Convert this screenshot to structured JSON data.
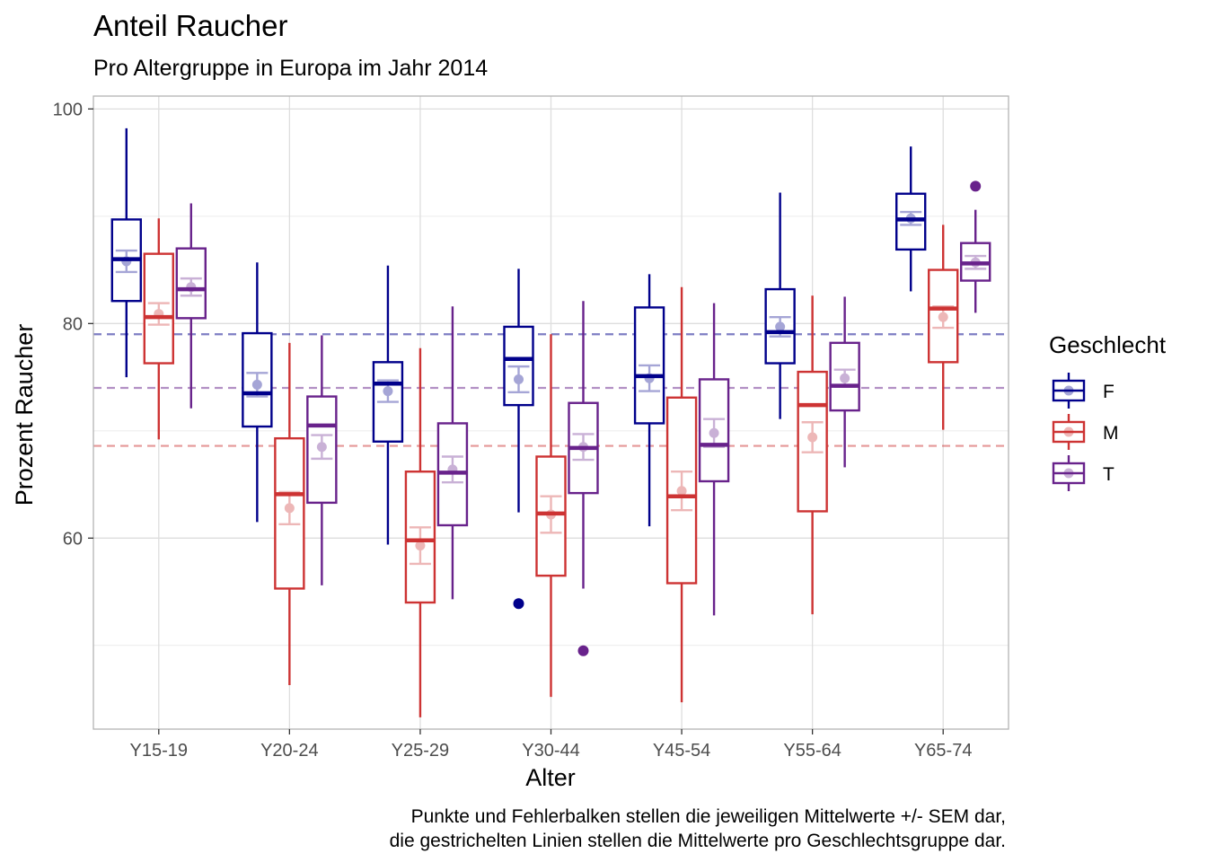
{
  "chart_data": {
    "type": "boxplot",
    "title": "Anteil Raucher",
    "subtitle": "Pro Altergruppe in Europa im Jahr 2014",
    "xlabel": "Alter",
    "ylabel": "Prozent Raucher",
    "ylim": [
      42.2,
      101.2
    ],
    "yticks": [
      60,
      80,
      100
    ],
    "grid": true,
    "legend": {
      "title": "Geschlecht",
      "placement": "right"
    },
    "categories": [
      "Y15-19",
      "Y20-24",
      "Y25-29",
      "Y30-44",
      "Y45-54",
      "Y55-64",
      "Y65-74"
    ],
    "series": [
      {
        "name": "F",
        "color": "#00008B",
        "overall_mean": 79.0,
        "boxes": [
          {
            "whisker_low": 75.0,
            "q1": 82.1,
            "median": 86.0,
            "q3": 89.7,
            "whisker_high": 98.2,
            "mean": 85.8,
            "sem": 1.0,
            "outliers": []
          },
          {
            "whisker_low": 61.5,
            "q1": 70.4,
            "median": 73.5,
            "q3": 79.1,
            "whisker_high": 85.7,
            "mean": 74.3,
            "sem": 1.1,
            "outliers": []
          },
          {
            "whisker_low": 59.4,
            "q1": 69.0,
            "median": 74.4,
            "q3": 76.4,
            "whisker_high": 85.4,
            "mean": 73.7,
            "sem": 1.0,
            "outliers": []
          },
          {
            "whisker_low": 62.4,
            "q1": 72.4,
            "median": 76.7,
            "q3": 79.7,
            "whisker_high": 85.1,
            "mean": 74.8,
            "sem": 1.2,
            "outliers": [
              53.9
            ]
          },
          {
            "whisker_low": 61.1,
            "q1": 70.7,
            "median": 75.1,
            "q3": 81.5,
            "whisker_high": 84.6,
            "mean": 74.9,
            "sem": 1.2,
            "outliers": []
          },
          {
            "whisker_low": 71.1,
            "q1": 76.3,
            "median": 79.2,
            "q3": 83.2,
            "whisker_high": 92.2,
            "mean": 79.7,
            "sem": 0.9,
            "outliers": []
          },
          {
            "whisker_low": 83.0,
            "q1": 86.9,
            "median": 89.7,
            "q3": 92.1,
            "whisker_high": 96.5,
            "mean": 89.8,
            "sem": 0.6,
            "outliers": []
          }
        ]
      },
      {
        "name": "M",
        "color": "#CD3333",
        "overall_mean": 68.6,
        "boxes": [
          {
            "whisker_low": 69.2,
            "q1": 76.3,
            "median": 80.6,
            "q3": 86.5,
            "whisker_high": 89.8,
            "mean": 80.9,
            "sem": 1.0,
            "outliers": []
          },
          {
            "whisker_low": 46.3,
            "q1": 55.3,
            "median": 64.1,
            "q3": 69.3,
            "whisker_high": 78.2,
            "mean": 62.8,
            "sem": 1.5,
            "outliers": []
          },
          {
            "whisker_low": 43.3,
            "q1": 54.0,
            "median": 59.8,
            "q3": 66.2,
            "whisker_high": 77.7,
            "mean": 59.3,
            "sem": 1.7,
            "outliers": []
          },
          {
            "whisker_low": 45.2,
            "q1": 56.5,
            "median": 62.3,
            "q3": 67.6,
            "whisker_high": 79.0,
            "mean": 62.2,
            "sem": 1.7,
            "outliers": []
          },
          {
            "whisker_low": 44.7,
            "q1": 55.8,
            "median": 63.9,
            "q3": 73.1,
            "whisker_high": 83.4,
            "mean": 64.4,
            "sem": 1.8,
            "outliers": []
          },
          {
            "whisker_low": 52.9,
            "q1": 62.5,
            "median": 72.4,
            "q3": 75.5,
            "whisker_high": 82.6,
            "mean": 69.4,
            "sem": 1.4,
            "outliers": []
          },
          {
            "whisker_low": 70.1,
            "q1": 76.4,
            "median": 81.4,
            "q3": 85.0,
            "whisker_high": 89.2,
            "mean": 80.6,
            "sem": 1.0,
            "outliers": []
          }
        ]
      },
      {
        "name": "T",
        "color": "#68228B",
        "overall_mean": 74.0,
        "boxes": [
          {
            "whisker_low": 72.1,
            "q1": 80.5,
            "median": 83.2,
            "q3": 87.0,
            "whisker_high": 91.2,
            "mean": 83.4,
            "sem": 0.8,
            "outliers": []
          },
          {
            "whisker_low": 55.6,
            "q1": 63.3,
            "median": 70.5,
            "q3": 73.2,
            "whisker_high": 78.9,
            "mean": 68.5,
            "sem": 1.1,
            "outliers": []
          },
          {
            "whisker_low": 54.3,
            "q1": 61.2,
            "median": 66.1,
            "q3": 70.7,
            "whisker_high": 81.6,
            "mean": 66.4,
            "sem": 1.2,
            "outliers": []
          },
          {
            "whisker_low": 55.3,
            "q1": 64.2,
            "median": 68.4,
            "q3": 72.6,
            "whisker_high": 82.1,
            "mean": 68.5,
            "sem": 1.2,
            "outliers": [
              49.5
            ]
          },
          {
            "whisker_low": 52.8,
            "q1": 65.3,
            "median": 68.7,
            "q3": 74.8,
            "whisker_high": 81.9,
            "mean": 69.8,
            "sem": 1.3,
            "outliers": []
          },
          {
            "whisker_low": 66.6,
            "q1": 71.9,
            "median": 74.2,
            "q3": 78.2,
            "whisker_high": 82.5,
            "mean": 74.9,
            "sem": 0.8,
            "outliers": []
          },
          {
            "whisker_low": 81.0,
            "q1": 84.0,
            "median": 85.6,
            "q3": 87.5,
            "whisker_high": 90.6,
            "mean": 85.7,
            "sem": 0.6,
            "outliers": [
              92.8
            ]
          }
        ]
      }
    ],
    "caption": [
      "Punkte und Fehlerbalken stellen die jeweiligen Mittelwerte +/- SEM dar,",
      "die gestrichelten Linien stellen die Mittelwerte pro Geschlechtsgruppe dar."
    ]
  }
}
